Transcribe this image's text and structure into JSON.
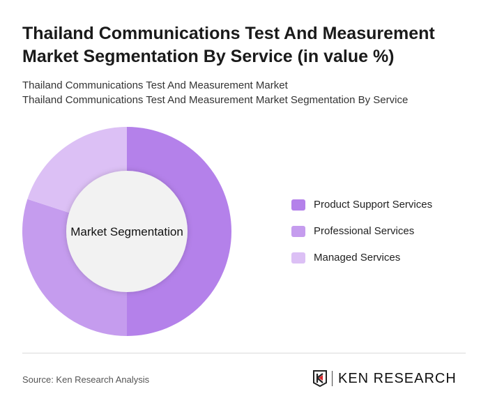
{
  "title": "Thailand Communications Test And Measurement Market Segmentation By Service (in value %)",
  "subtitle_1": "Thailand Communications Test And Measurement Market",
  "subtitle_2": "Thailand Communications Test And Measurement Market Segmentation By Service",
  "source": "Source: Ken Research Analysis",
  "logo_text": "KEN RESEARCH",
  "chart_data": {
    "type": "pie",
    "donut": true,
    "center_label": "Market Segmentation",
    "categories": [
      "Product Support Services",
      "Professional Services",
      "Managed Services"
    ],
    "values": [
      50,
      30,
      20
    ],
    "colors": [
      "#b481ea",
      "#c59cee",
      "#dcc0f5"
    ],
    "legend_position": "right"
  }
}
